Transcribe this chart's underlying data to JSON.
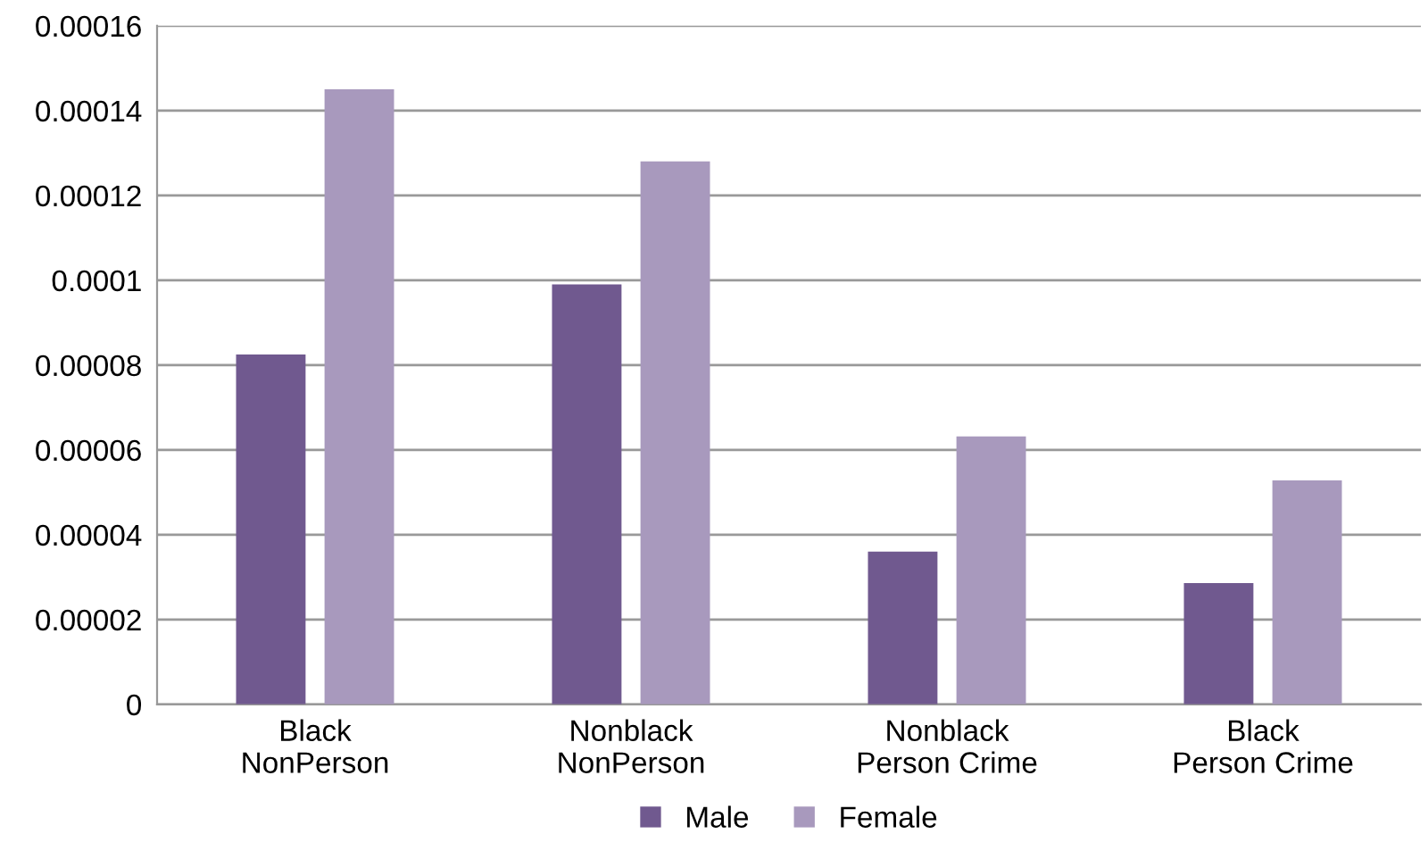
{
  "chart_data": {
    "type": "bar",
    "categories": [
      "Black\nNonPerson",
      "Nonblack\nNonPerson",
      "Nonblack\nPerson Crime",
      "Black\nPerson Crime"
    ],
    "series": [
      {
        "name": "Male",
        "color": "#70598f",
        "values": [
          8.25e-05,
          9.9e-05,
          3.6e-05,
          2.86e-05
        ]
      },
      {
        "name": "Female",
        "color": "#a899bd",
        "values": [
          0.000145,
          0.000128,
          6.32e-05,
          5.28e-05
        ]
      }
    ],
    "ylim": [
      0,
      0.00016
    ],
    "yticks": [
      {
        "value": 0,
        "label": "0"
      },
      {
        "value": 2e-05,
        "label": "0.00002"
      },
      {
        "value": 4e-05,
        "label": "0.00004"
      },
      {
        "value": 6e-05,
        "label": "0.00006"
      },
      {
        "value": 8e-05,
        "label": "0.00008"
      },
      {
        "value": 0.0001,
        "label": "0.0001"
      },
      {
        "value": 0.00012,
        "label": "0.00012"
      },
      {
        "value": 0.00014,
        "label": "0.00014"
      },
      {
        "value": 0.00016,
        "label": "0.00016"
      }
    ],
    "grid": "y",
    "legend": "bottom"
  }
}
